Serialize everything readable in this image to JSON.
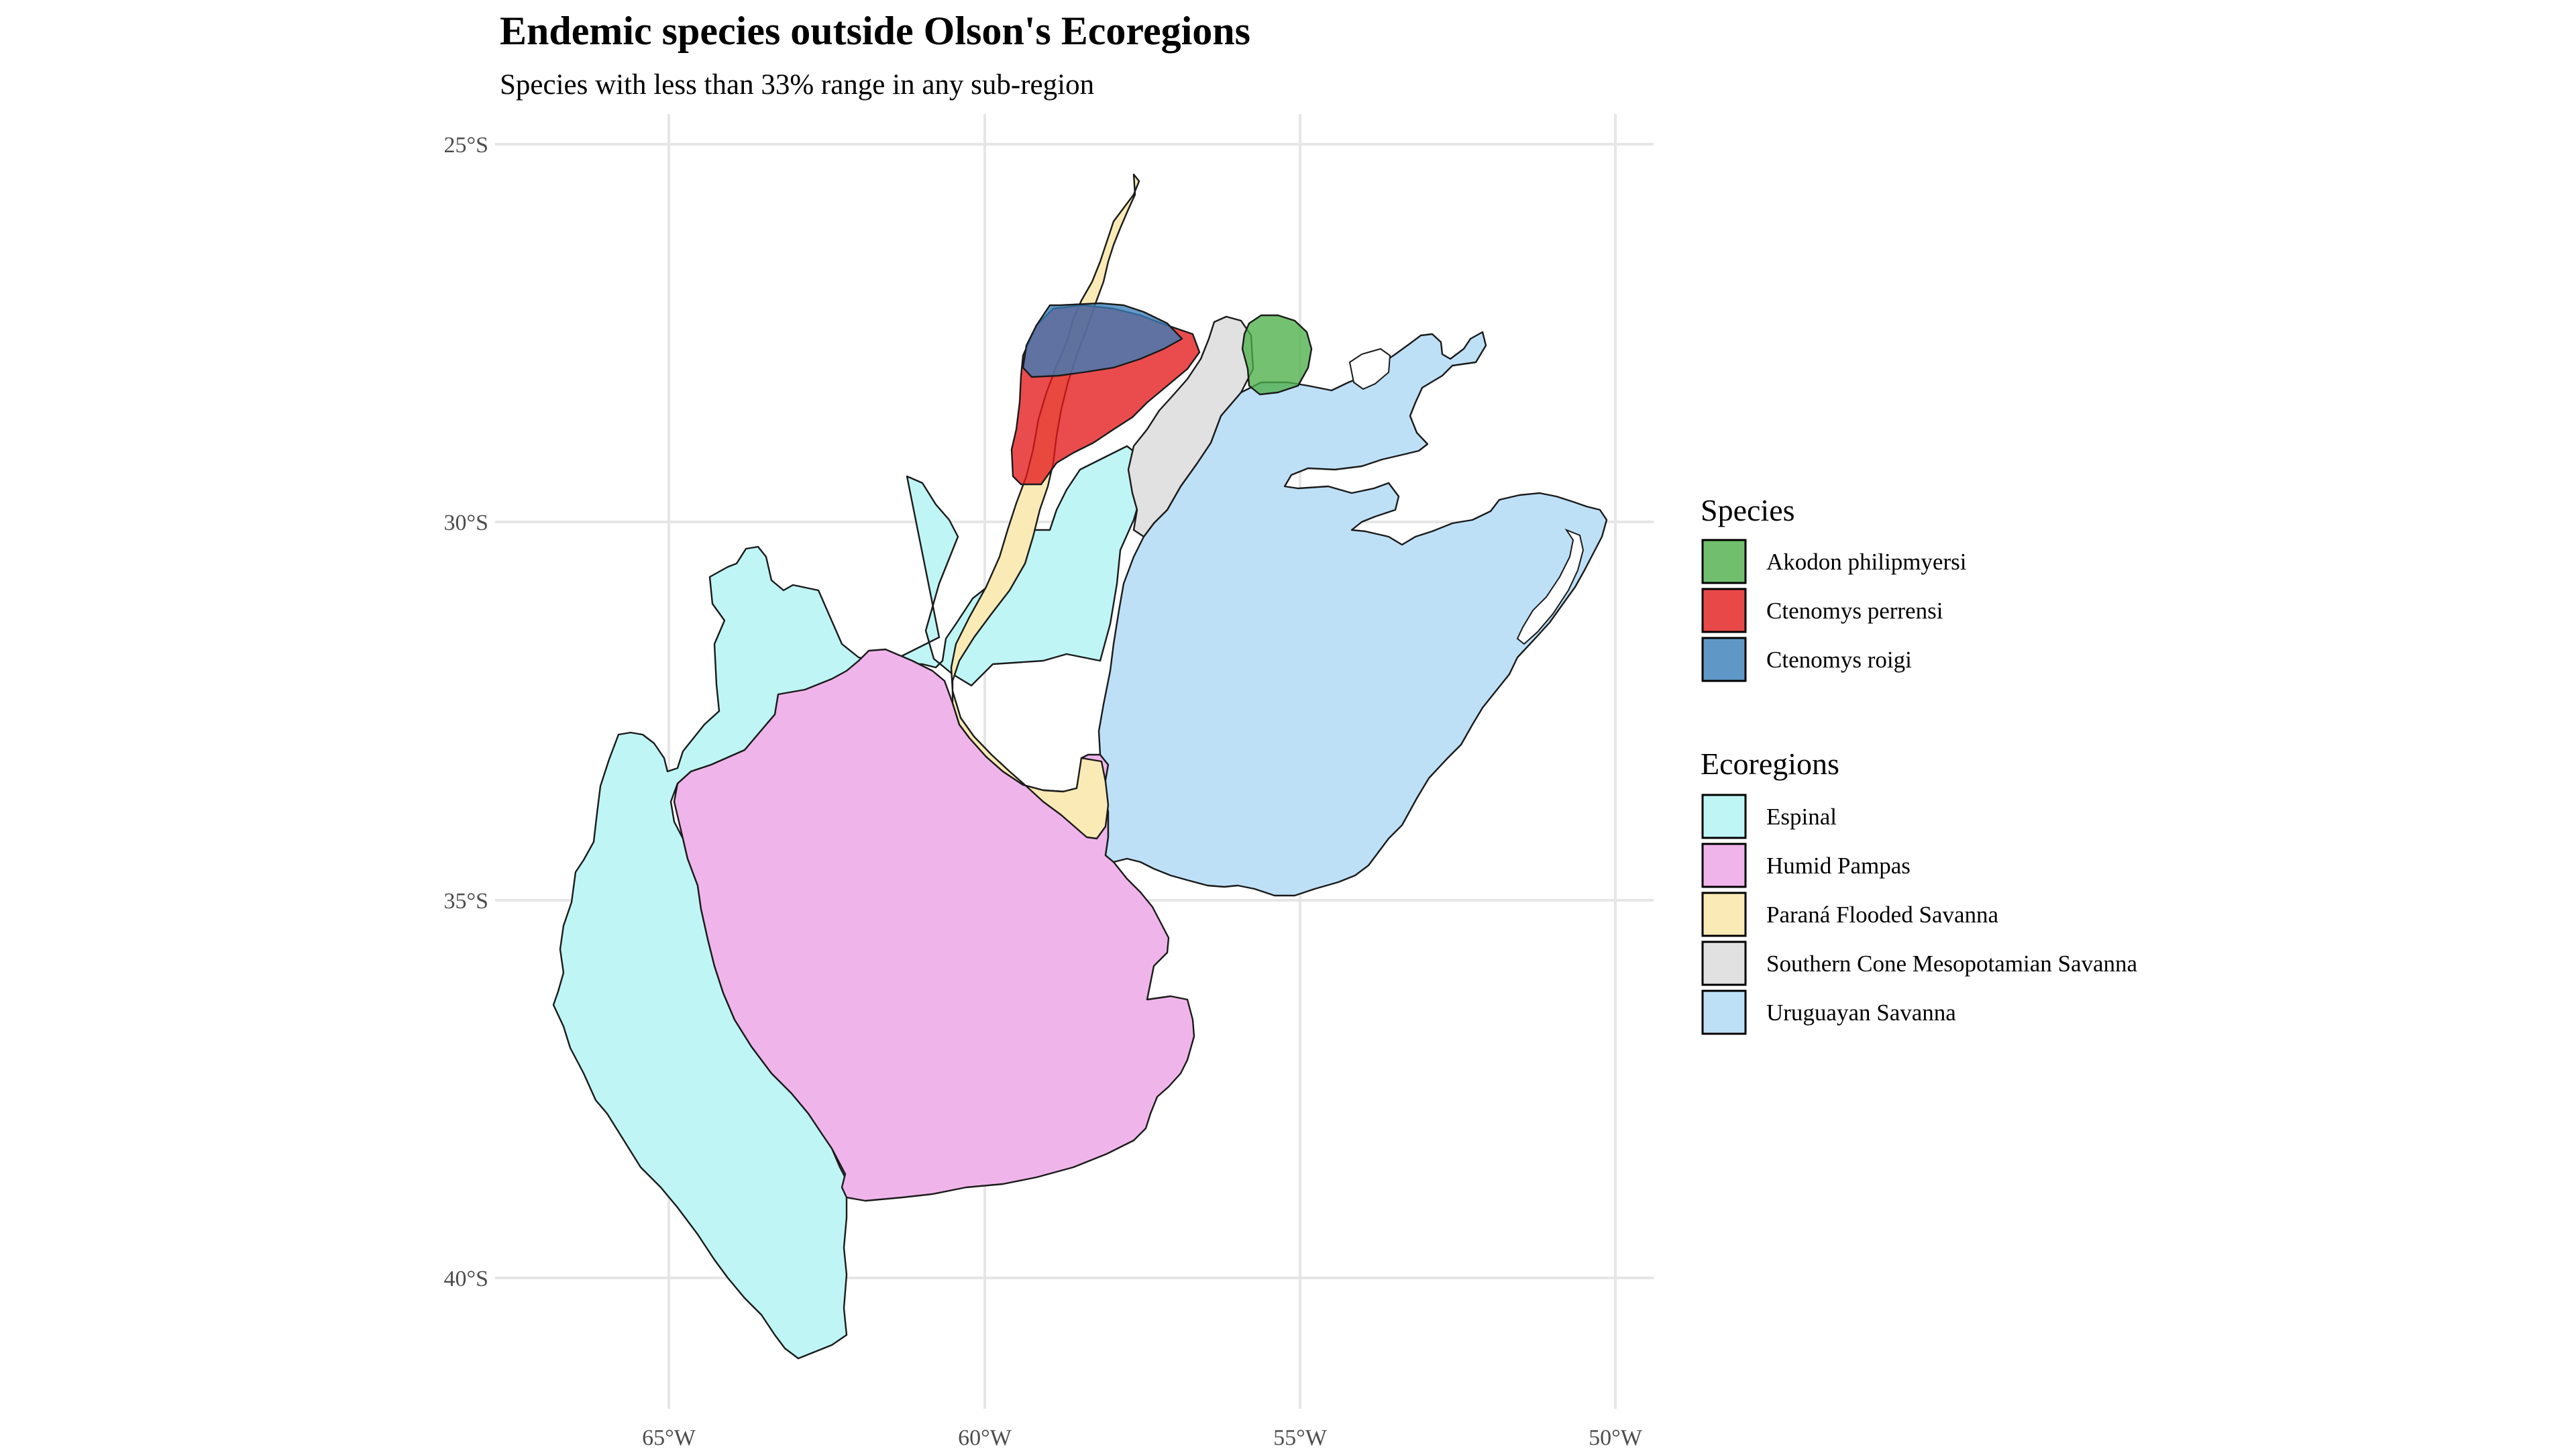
{
  "title": "Endemic species outside Olson's Ecoregions",
  "subtitle": "Species with less than 33% range in any sub-region",
  "axes": {
    "x_ticks": [
      "65°W",
      "60°W",
      "55°W",
      "50°W"
    ],
    "y_ticks": [
      "25°S",
      "30°S",
      "35°S",
      "40°S"
    ],
    "x_range": [
      -67.2,
      -49.4
    ],
    "y_range": [
      -41.7,
      -24.6
    ],
    "grid": true
  },
  "legend": {
    "placement": "right",
    "species_title": "Species",
    "species": [
      {
        "label": "Akodon philipmyersi",
        "color": "#4daf4a"
      },
      {
        "label": "Ctenomys perrensi",
        "color": "#e41a1c"
      },
      {
        "label": "Ctenomys roigi",
        "color": "#377eb8"
      }
    ],
    "ecoregions_title": "Ecoregions",
    "ecoregions": [
      {
        "label": "Espinal",
        "color": "#bff5f5"
      },
      {
        "label": "Humid Pampas",
        "color": "#efb5ea"
      },
      {
        "label": "Paraná Flooded Savanna",
        "color": "#faeab5"
      },
      {
        "label": "Southern Cone Mesopotamian Savanna",
        "color": "#e1e1e1"
      },
      {
        "label": "Uruguayan Savanna",
        "color": "#bee0f7"
      }
    ]
  }
}
